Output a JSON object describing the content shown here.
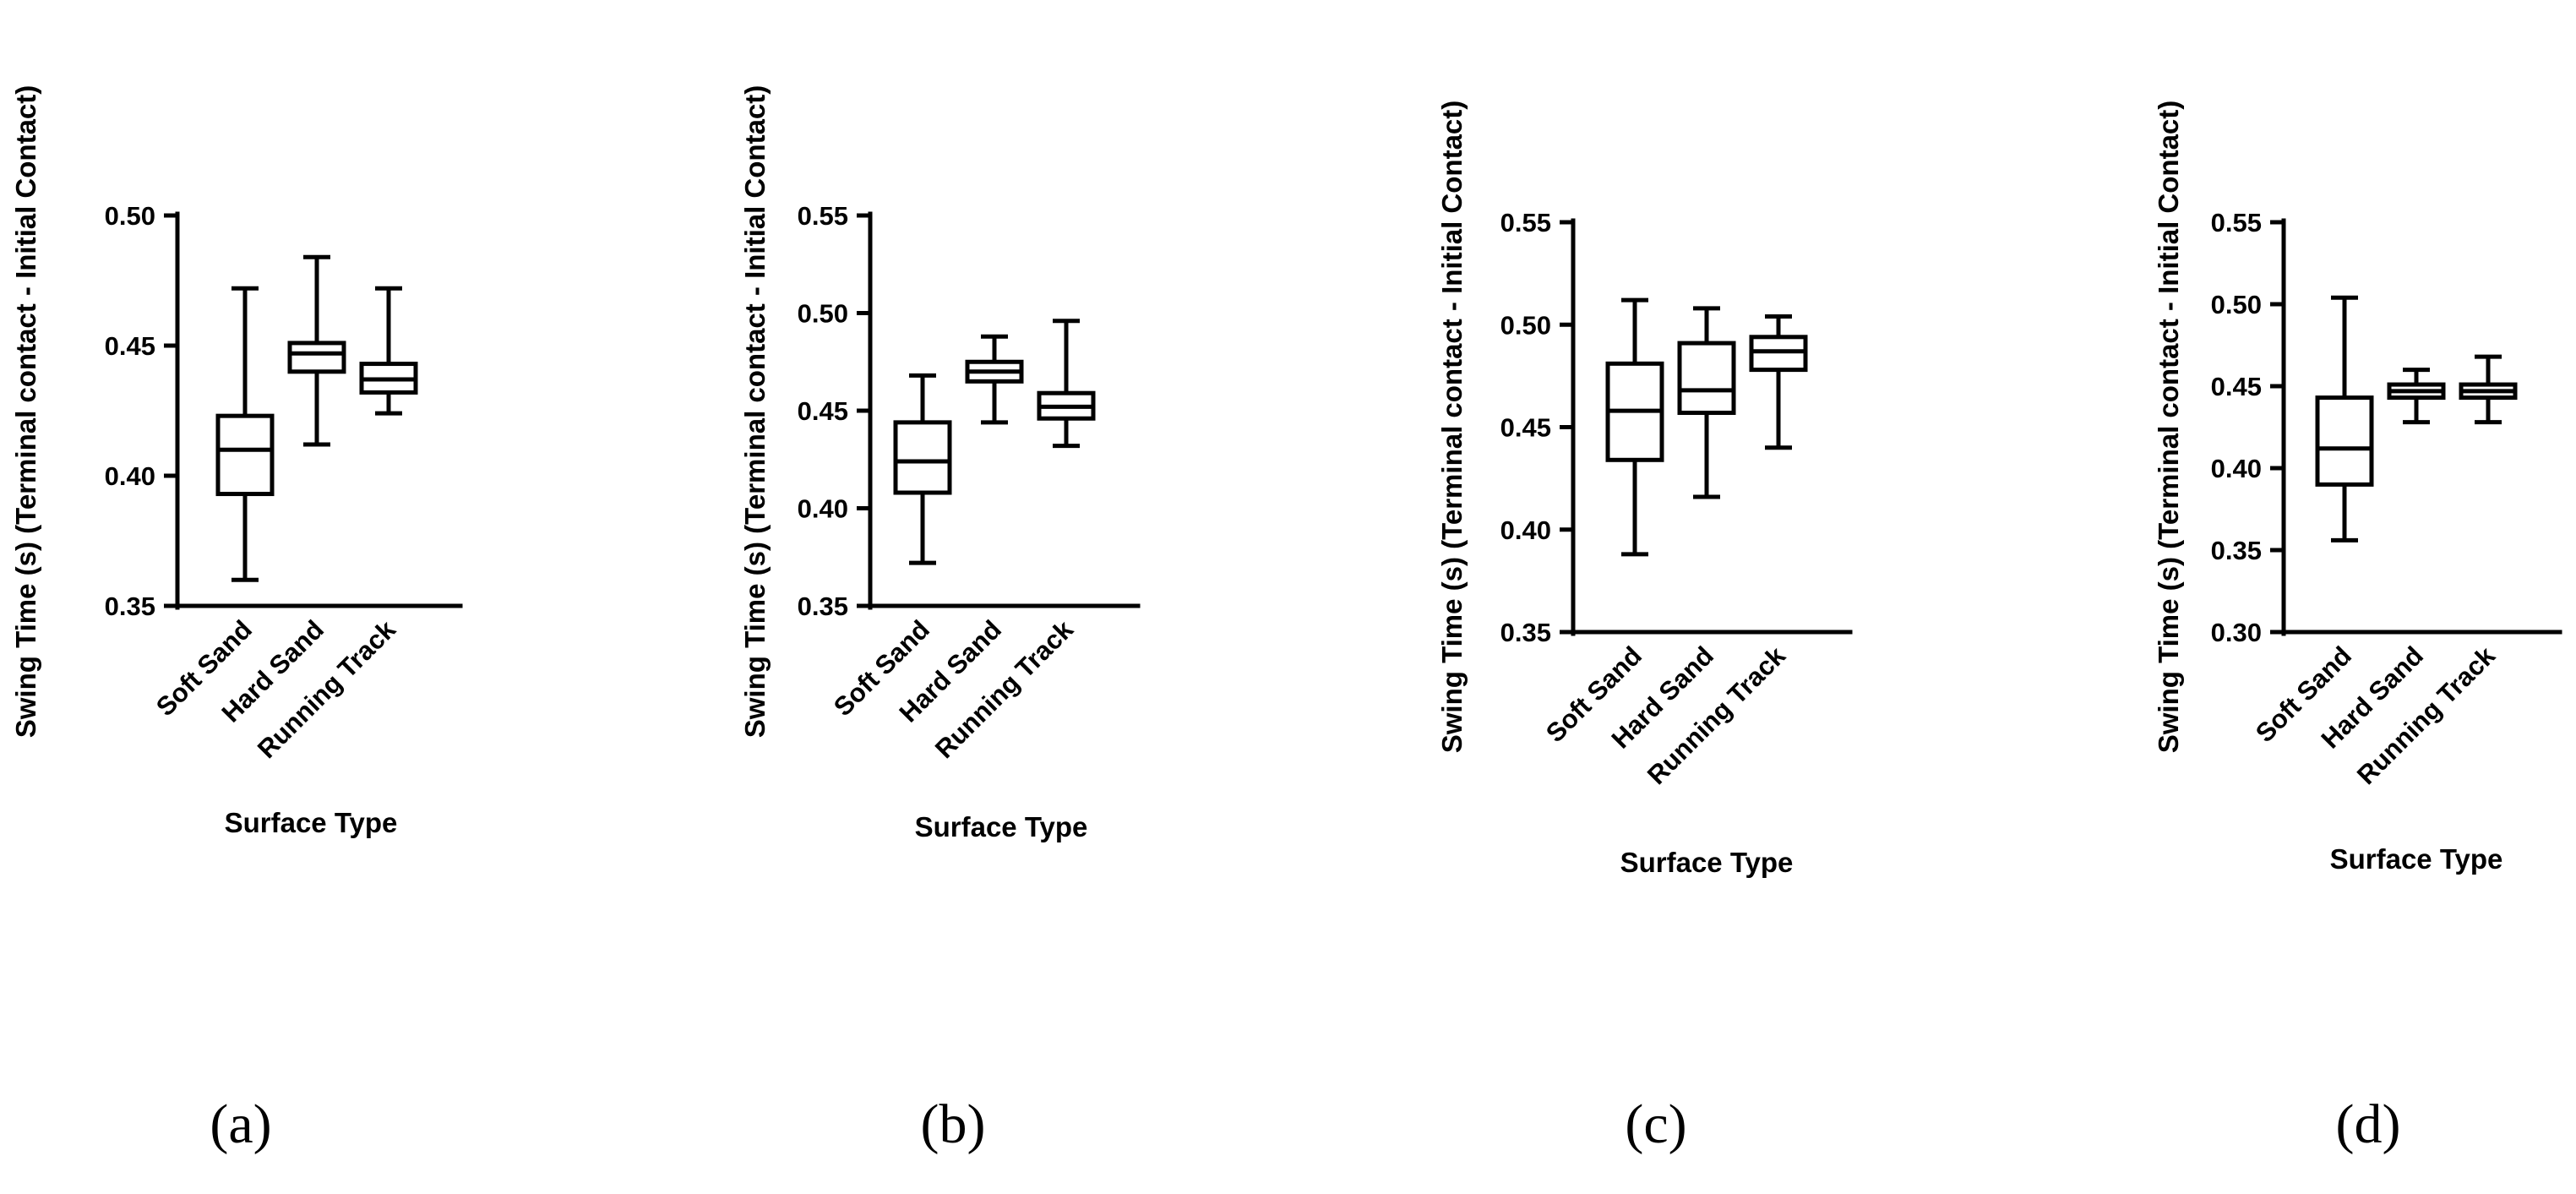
{
  "chart_data": [
    {
      "type": "boxplot",
      "panel_label": "(a)",
      "xlabel": "Surface Type",
      "ylabel": "Swing Time (s) (Terminal contact - Initial  Contact)",
      "ylim": [
        0.35,
        0.5
      ],
      "yticks": [
        0.35,
        0.4,
        0.45,
        0.5
      ],
      "ytick_labels": [
        "0.35",
        "0.40",
        "0.45",
        "0.50"
      ],
      "categories": [
        "Soft Sand",
        "Hard Sand",
        "Running Track"
      ],
      "boxes": [
        {
          "min": 0.36,
          "q1": 0.393,
          "median": 0.41,
          "q3": 0.423,
          "max": 0.472
        },
        {
          "min": 0.412,
          "q1": 0.44,
          "median": 0.447,
          "q3": 0.451,
          "max": 0.484
        },
        {
          "min": 0.424,
          "q1": 0.432,
          "median": 0.437,
          "q3": 0.443,
          "max": 0.472
        }
      ]
    },
    {
      "type": "boxplot",
      "panel_label": "(b)",
      "xlabel": "Surface Type",
      "ylabel": "Swing Time (s) (Terminal contact - Initial  Contact)",
      "ylim": [
        0.35,
        0.55
      ],
      "yticks": [
        0.35,
        0.4,
        0.45,
        0.5,
        0.55
      ],
      "ytick_labels": [
        "0.35",
        "0.40",
        "0.45",
        "0.50",
        "0.55"
      ],
      "categories": [
        "Soft Sand",
        "Hard Sand",
        "Running Track"
      ],
      "boxes": [
        {
          "min": 0.372,
          "q1": 0.408,
          "median": 0.424,
          "q3": 0.444,
          "max": 0.468
        },
        {
          "min": 0.444,
          "q1": 0.465,
          "median": 0.47,
          "q3": 0.475,
          "max": 0.488
        },
        {
          "min": 0.432,
          "q1": 0.446,
          "median": 0.452,
          "q3": 0.459,
          "max": 0.496
        }
      ]
    },
    {
      "type": "boxplot",
      "panel_label": "(c)",
      "xlabel": "Surface Type",
      "ylabel": "Swing Time (s) (Terminal contact - Initial  Contact)",
      "ylim": [
        0.35,
        0.55
      ],
      "yticks": [
        0.35,
        0.4,
        0.45,
        0.5,
        0.55
      ],
      "ytick_labels": [
        "0.35",
        "0.40",
        "0.45",
        "0.50",
        "0.55"
      ],
      "categories": [
        "Soft Sand",
        "Hard Sand",
        "Running Track"
      ],
      "boxes": [
        {
          "min": 0.388,
          "q1": 0.434,
          "median": 0.458,
          "q3": 0.481,
          "max": 0.512
        },
        {
          "min": 0.416,
          "q1": 0.457,
          "median": 0.468,
          "q3": 0.491,
          "max": 0.508
        },
        {
          "min": 0.44,
          "q1": 0.478,
          "median": 0.487,
          "q3": 0.494,
          "max": 0.504
        }
      ]
    },
    {
      "type": "boxplot",
      "panel_label": "(d)",
      "xlabel": "Surface Type",
      "ylabel": "Swing Time (s) (Terminal contact - Initial  Contact)",
      "ylim": [
        0.3,
        0.55
      ],
      "yticks": [
        0.3,
        0.35,
        0.4,
        0.45,
        0.5,
        0.55
      ],
      "ytick_labels": [
        "0.30",
        "0.35",
        "0.40",
        "0.45",
        "0.50",
        "0.55"
      ],
      "categories": [
        "Soft Sand",
        "Hard Sand",
        "Running Track"
      ],
      "boxes": [
        {
          "min": 0.356,
          "q1": 0.39,
          "median": 0.412,
          "q3": 0.443,
          "max": 0.504
        },
        {
          "min": 0.428,
          "q1": 0.443,
          "median": 0.447,
          "q3": 0.451,
          "max": 0.46
        },
        {
          "min": 0.428,
          "q1": 0.443,
          "median": 0.447,
          "q3": 0.451,
          "max": 0.468
        }
      ]
    }
  ]
}
